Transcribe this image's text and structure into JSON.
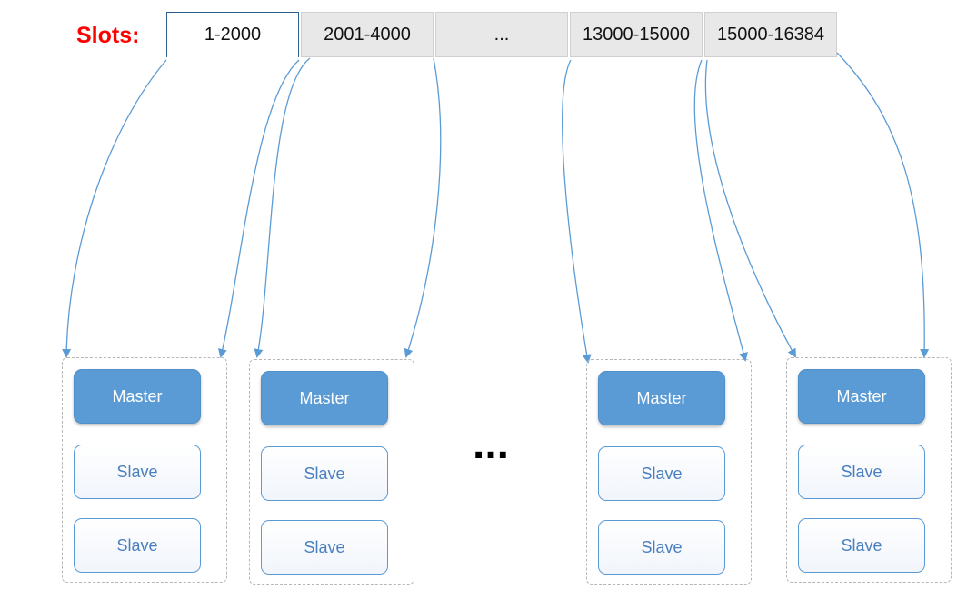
{
  "slots_label": "Slots:",
  "slots": [
    {
      "label": "1-2000",
      "active": true
    },
    {
      "label": "2001-4000",
      "active": false
    },
    {
      "label": "...",
      "active": false
    },
    {
      "label": "13000-15000",
      "active": false
    },
    {
      "label": "15000-16384",
      "active": false
    }
  ],
  "groups": [
    {
      "master": "Master",
      "slaves": [
        "Slave",
        "Slave"
      ]
    },
    {
      "master": "Master",
      "slaves": [
        "Slave",
        "Slave"
      ]
    },
    {
      "master": "Master",
      "slaves": [
        "Slave",
        "Slave"
      ]
    },
    {
      "master": "Master",
      "slaves": [
        "Slave",
        "Slave"
      ]
    }
  ],
  "ellipsis": "...",
  "colors": {
    "slots_label": "#ff0000",
    "master_fill": "#5b9bd5",
    "slave_border": "#5b9bd5",
    "arrow": "#5b9bd5",
    "slot_cell": "#e8e8e8"
  }
}
